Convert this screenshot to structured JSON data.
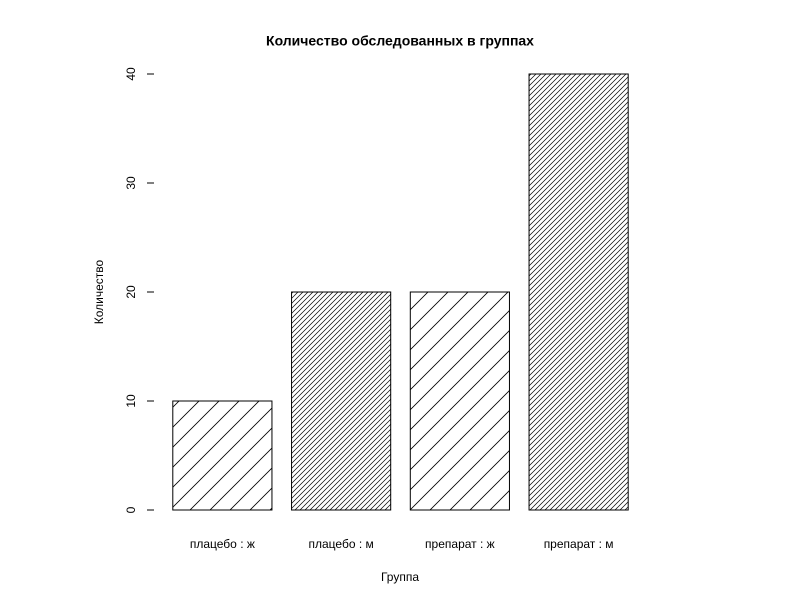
{
  "chart_data": {
    "type": "bar",
    "title": "Количество обследованных в группах",
    "xlabel": "Группа",
    "ylabel": "Количество",
    "categories": [
      "плацебо : ж",
      "плацебо : м",
      "препарат : ж",
      "препарат : м"
    ],
    "values": [
      10,
      20,
      20,
      40
    ],
    "color": "#000000",
    "hatch": [
      "sparse",
      "dense",
      "sparse",
      "dense"
    ],
    "ylim": [
      0,
      40
    ],
    "yticks": [
      0,
      10,
      20,
      30,
      40
    ]
  }
}
